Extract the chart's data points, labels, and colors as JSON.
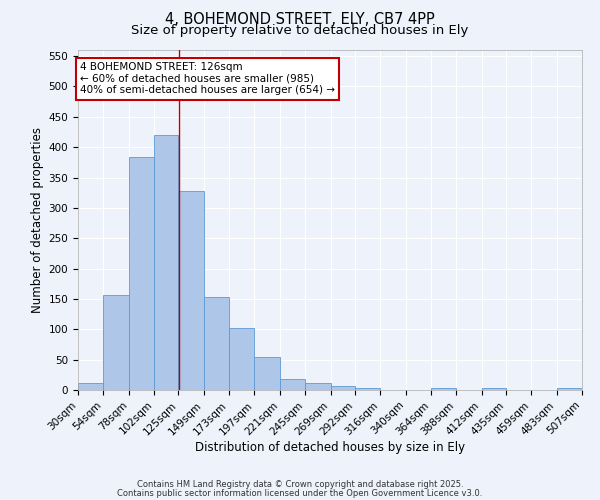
{
  "title1": "4, BOHEMOND STREET, ELY, CB7 4PP",
  "title2": "Size of property relative to detached houses in Ely",
  "xlabel": "Distribution of detached houses by size in Ely",
  "ylabel": "Number of detached properties",
  "bin_edges": [
    30,
    54,
    78,
    102,
    125,
    149,
    173,
    197,
    221,
    245,
    269,
    292,
    316,
    340,
    364,
    388,
    412,
    435,
    459,
    483,
    507
  ],
  "bar_heights": [
    12,
    157,
    383,
    420,
    328,
    153,
    102,
    54,
    18,
    11,
    7,
    4,
    0,
    0,
    3,
    0,
    3,
    0,
    0,
    4
  ],
  "bar_color": "#aec6e8",
  "bar_edge_color": "#5b9bd5",
  "property_size": 126,
  "property_line_color": "#c00000",
  "annotation_line1": "4 BOHEMOND STREET: 126sqm",
  "annotation_line2": "← 60% of detached houses are smaller (985)",
  "annotation_line3": "40% of semi-detached houses are larger (654) →",
  "annotation_box_color": "#ffffff",
  "annotation_border_color": "#c00000",
  "ylim": [
    0,
    560
  ],
  "yticks": [
    0,
    50,
    100,
    150,
    200,
    250,
    300,
    350,
    400,
    450,
    500,
    550
  ],
  "bg_color": "#eef2fb",
  "grid_color": "#ffffff",
  "footnote1": "Contains HM Land Registry data © Crown copyright and database right 2025.",
  "footnote2": "Contains public sector information licensed under the Open Government Licence v3.0.",
  "title_fontsize": 10.5,
  "subtitle_fontsize": 9.5,
  "axis_fontsize": 8.5,
  "tick_fontsize": 7.5,
  "annot_fontsize": 7.5,
  "footnote_fontsize": 6.0
}
